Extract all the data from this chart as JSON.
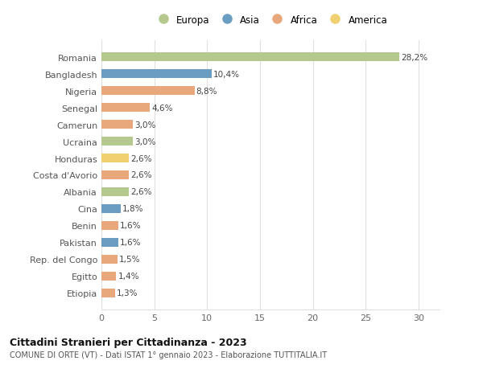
{
  "categories": [
    "Romania",
    "Bangladesh",
    "Nigeria",
    "Senegal",
    "Camerun",
    "Ucraina",
    "Honduras",
    "Costa d'Avorio",
    "Albania",
    "Cina",
    "Benin",
    "Pakistan",
    "Rep. del Congo",
    "Egitto",
    "Etiopia"
  ],
  "values": [
    28.2,
    10.4,
    8.8,
    4.6,
    3.0,
    3.0,
    2.6,
    2.6,
    2.6,
    1.8,
    1.6,
    1.6,
    1.5,
    1.4,
    1.3
  ],
  "labels": [
    "28,2%",
    "10,4%",
    "8,8%",
    "4,6%",
    "3,0%",
    "3,0%",
    "2,6%",
    "2,6%",
    "2,6%",
    "1,8%",
    "1,6%",
    "1,6%",
    "1,5%",
    "1,4%",
    "1,3%"
  ],
  "continent": [
    "Europa",
    "Asia",
    "Africa",
    "Africa",
    "Africa",
    "Europa",
    "America",
    "Africa",
    "Europa",
    "Asia",
    "Africa",
    "Asia",
    "Africa",
    "Africa",
    "Africa"
  ],
  "colors": {
    "Europa": "#b5c98e",
    "Asia": "#6b9dc2",
    "Africa": "#e8a87c",
    "America": "#f0d070"
  },
  "legend_order": [
    "Europa",
    "Asia",
    "Africa",
    "America"
  ],
  "title": "Cittadini Stranieri per Cittadinanza - 2023",
  "subtitle": "COMUNE DI ORTE (VT) - Dati ISTAT 1° gennaio 2023 - Elaborazione TUTTITALIA.IT",
  "xlim": [
    0,
    32
  ],
  "xticks": [
    0,
    5,
    10,
    15,
    20,
    25,
    30
  ],
  "background_color": "#ffffff",
  "grid_color": "#e0e0e0"
}
